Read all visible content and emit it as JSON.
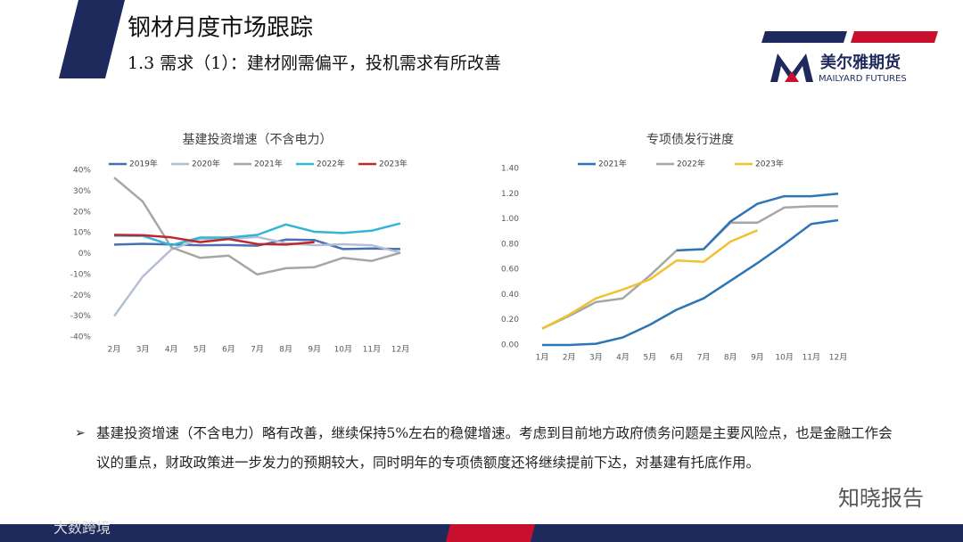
{
  "header": {
    "title": "钢材月度市场跟踪",
    "subtitle": "1.3 需求（1）：建材刚需偏平，投机需求有所改善"
  },
  "logo": {
    "name": "美尔雅期货",
    "english": "MAILYARD FUTURES"
  },
  "bullet": "基建投资增速（不含电力）略有改善，继续保持5%左右的稳健增速。考虑到目前地方政府债务问题是主要风险点，也是金融工作会议的重点，财政政策进一步发力的预期较大，同时明年的专项债额度还将继续提前下达，对基建有托底作用。",
  "watermarks": [
    "知晓报告",
    "大数跨境"
  ],
  "chart_data": [
    {
      "type": "line",
      "title": "基建投资增速（不含电力）",
      "categories": [
        "2月",
        "3月",
        "4月",
        "5月",
        "6月",
        "7月",
        "8月",
        "9月",
        "10月",
        "11月",
        "12月"
      ],
      "series": [
        {
          "name": "2019年",
          "color": "#4a6fb0",
          "values": [
            4.3,
            4.7,
            4.4,
            4.0,
            4.1,
            3.8,
            6.7,
            6.5,
            2.2,
            2.5,
            2.2
          ]
        },
        {
          "name": "2020年",
          "color": "#b4bfd6",
          "values": [
            -30,
            -11,
            2,
            7,
            7,
            8,
            5,
            4,
            4.5,
            4,
            0.5
          ]
        },
        {
          "name": "2021年",
          "color": "#a6a6a6",
          "values": [
            36.5,
            25,
            3,
            -2,
            -1,
            -10,
            -7,
            -6.5,
            -2,
            -3.5,
            0.4
          ]
        },
        {
          "name": "2022年",
          "color": "#33b5d6",
          "values": [
            8.6,
            8.5,
            4,
            7.7,
            7.7,
            9,
            14,
            10.5,
            9.9,
            11,
            14.5
          ]
        },
        {
          "name": "2023年",
          "color": "#c0262d",
          "values": [
            9,
            8.8,
            7.8,
            5.5,
            7.0,
            4.6,
            4.3,
            5.5,
            null,
            null,
            null
          ]
        }
      ],
      "ylim": [
        -40,
        40
      ],
      "yticks": [
        {
          "value": -40,
          "label": "-40%"
        },
        {
          "value": -30,
          "label": "-30%"
        },
        {
          "value": -20,
          "label": "-20%"
        },
        {
          "value": -10,
          "label": "-10%"
        },
        {
          "value": 0,
          "label": "0%"
        },
        {
          "value": 10,
          "label": "10%"
        },
        {
          "value": 20,
          "label": "20%"
        },
        {
          "value": 30,
          "label": "30%"
        },
        {
          "value": 40,
          "label": "40%"
        }
      ],
      "grid": false,
      "legend": "top"
    },
    {
      "type": "line",
      "title": "专项债发行进度",
      "categories": [
        "1月",
        "2月",
        "3月",
        "4月",
        "5月",
        "6月",
        "7月",
        "8月",
        "9月",
        "10月",
        "11月",
        "12月"
      ],
      "series": [
        {
          "name": "2021年",
          "color": "#2e75b6",
          "values": [
            0,
            0,
            0.01,
            0.06,
            0.16,
            0.28,
            0.37,
            0.51,
            0.65,
            0.8,
            0.96,
            0.99
          ]
        },
        {
          "name": "2022年",
          "color": "#a6a6a6",
          "values": [
            0.13,
            0.23,
            0.34,
            0.37,
            0.55,
            0.75,
            0.76,
            0.97,
            0.97,
            1.09,
            1.1,
            1.1
          ]
        },
        {
          "name": "2023年",
          "color": "#f2c12e",
          "values": [
            0.13,
            0.24,
            0.37,
            0.44,
            0.52,
            0.67,
            0.66,
            0.82,
            0.91,
            null,
            null,
            null
          ]
        },
        {
          "color": "#2e75b6",
          "values": [
            null,
            null,
            null,
            null,
            null,
            0.75,
            0.76,
            0.98,
            1.12,
            1.18,
            1.18,
            1.2
          ]
        }
      ],
      "ylim": [
        0,
        1.4
      ],
      "yticks": [
        {
          "value": 0,
          "label": "0.00"
        },
        {
          "value": 0.2,
          "label": "0.20"
        },
        {
          "value": 0.4,
          "label": "0.40"
        },
        {
          "value": 0.6,
          "label": "0.60"
        },
        {
          "value": 0.8,
          "label": "0.80"
        },
        {
          "value": 1.0,
          "label": "1.00"
        },
        {
          "value": 1.2,
          "label": "1.20"
        },
        {
          "value": 1.4,
          "label": "1.40"
        }
      ],
      "grid": false,
      "legend": "top"
    }
  ]
}
